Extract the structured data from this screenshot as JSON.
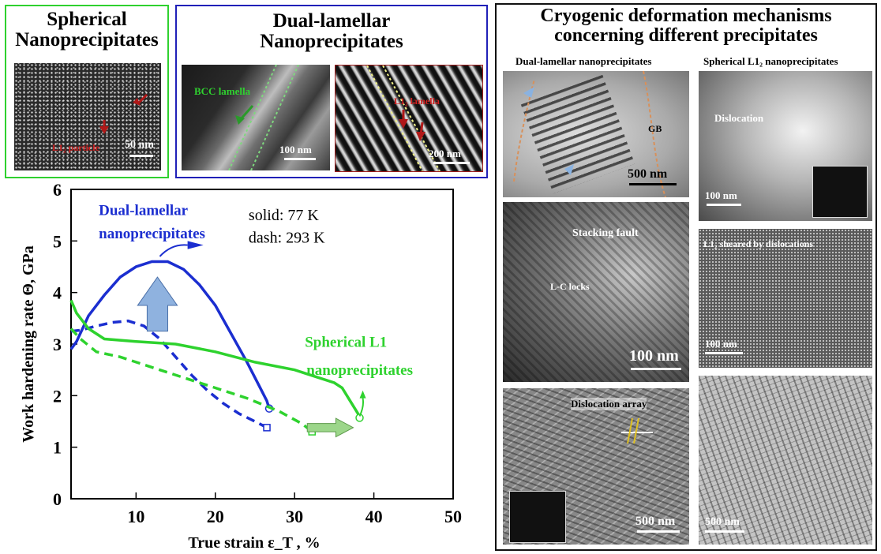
{
  "insets": {
    "spherical": {
      "title_line1": "Spherical",
      "title_line2": "Nanoprecipitates",
      "particle_label": "L1₂ particle",
      "scale": "50 nm"
    },
    "dual": {
      "title_line1": "Dual-lamellar",
      "title_line2": "Nanoprecipitates",
      "left": {
        "label": "BCC lamella",
        "scale": "100 nm"
      },
      "right": {
        "label": "L1₂ lamella",
        "scale": "200 nm"
      }
    }
  },
  "chart_data": {
    "type": "line",
    "xlabel": "True strain ε_T , %",
    "ylabel": "Work hardening rate Θ, GPa",
    "xlim": [
      0,
      50
    ],
    "ylim": [
      0,
      6
    ],
    "xticks": [
      10,
      20,
      30,
      40,
      50
    ],
    "yticks": [
      0,
      1,
      2,
      3,
      4,
      5,
      6
    ],
    "annotations": {
      "solid": "solid: 77 K",
      "dash": "dash: 293 K",
      "dual": [
        "Dual-lamellar",
        "nanoprecipitates"
      ],
      "sph": [
        "Spherical L1",
        "nanoprecipitates"
      ]
    },
    "series": [
      {
        "name": "Dual-lamellar 77 K",
        "color": "#1b2ed0",
        "dash": false,
        "points": [
          [
            1.8,
            2.9
          ],
          [
            2.5,
            3.05
          ],
          [
            4,
            3.55
          ],
          [
            6,
            3.95
          ],
          [
            8,
            4.3
          ],
          [
            10,
            4.5
          ],
          [
            12,
            4.6
          ],
          [
            14,
            4.6
          ],
          [
            16,
            4.45
          ],
          [
            18,
            4.15
          ],
          [
            20,
            3.75
          ],
          [
            22,
            3.2
          ],
          [
            24,
            2.65
          ],
          [
            25.5,
            2.2
          ],
          [
            26.5,
            1.9
          ],
          [
            26.8,
            1.75
          ]
        ]
      },
      {
        "name": "Dual-lamellar 293 K",
        "color": "#1b2ed0",
        "dash": true,
        "points": [
          [
            1.8,
            3.25
          ],
          [
            3,
            3.27
          ],
          [
            5,
            3.35
          ],
          [
            7,
            3.42
          ],
          [
            9,
            3.45
          ],
          [
            11,
            3.35
          ],
          [
            13,
            3.1
          ],
          [
            15,
            2.75
          ],
          [
            17,
            2.4
          ],
          [
            19,
            2.1
          ],
          [
            21,
            1.85
          ],
          [
            23,
            1.65
          ],
          [
            25,
            1.5
          ],
          [
            26.5,
            1.38
          ]
        ]
      },
      {
        "name": "Spherical L1₂ 77 K",
        "color": "#2ed22e",
        "dash": false,
        "points": [
          [
            1.8,
            3.85
          ],
          [
            2.5,
            3.6
          ],
          [
            4,
            3.3
          ],
          [
            6,
            3.1
          ],
          [
            10,
            3.05
          ],
          [
            15,
            3.0
          ],
          [
            20,
            2.85
          ],
          [
            25,
            2.65
          ],
          [
            30,
            2.5
          ],
          [
            35,
            2.25
          ],
          [
            36,
            2.15
          ],
          [
            37,
            1.9
          ],
          [
            38,
            1.65
          ],
          [
            38.2,
            1.57
          ]
        ]
      },
      {
        "name": "Spherical L1₂ 293 K",
        "color": "#2ed22e",
        "dash": true,
        "points": [
          [
            1.8,
            3.3
          ],
          [
            3,
            3.1
          ],
          [
            5,
            2.85
          ],
          [
            8,
            2.75
          ],
          [
            12,
            2.55
          ],
          [
            16,
            2.35
          ],
          [
            20,
            2.15
          ],
          [
            24,
            1.95
          ],
          [
            28,
            1.7
          ],
          [
            31,
            1.45
          ],
          [
            32.2,
            1.3
          ]
        ]
      }
    ]
  },
  "right_panel": {
    "title_line1": "Cryogenic deformation mechanisms",
    "title_line2": "concerning different precipitates",
    "col_left": "Dual-lamellar nanoprecipitates",
    "col_right": "Spherical L1₂ nanoprecipitates",
    "img1": {
      "label": "GB",
      "scale": "500 nm"
    },
    "img2": {
      "label1": "Stacking fault",
      "label2": "L-C locks",
      "scale": "100 nm"
    },
    "img3": {
      "label": "Dislocation array",
      "scale": "500 nm"
    },
    "img4": {
      "label": "Dislocation",
      "scale": "100 nm"
    },
    "img5": {
      "label": "L1₂  sheared by dislocations",
      "scale": "100 nm"
    },
    "img6": {
      "scale": "500 nm"
    }
  }
}
